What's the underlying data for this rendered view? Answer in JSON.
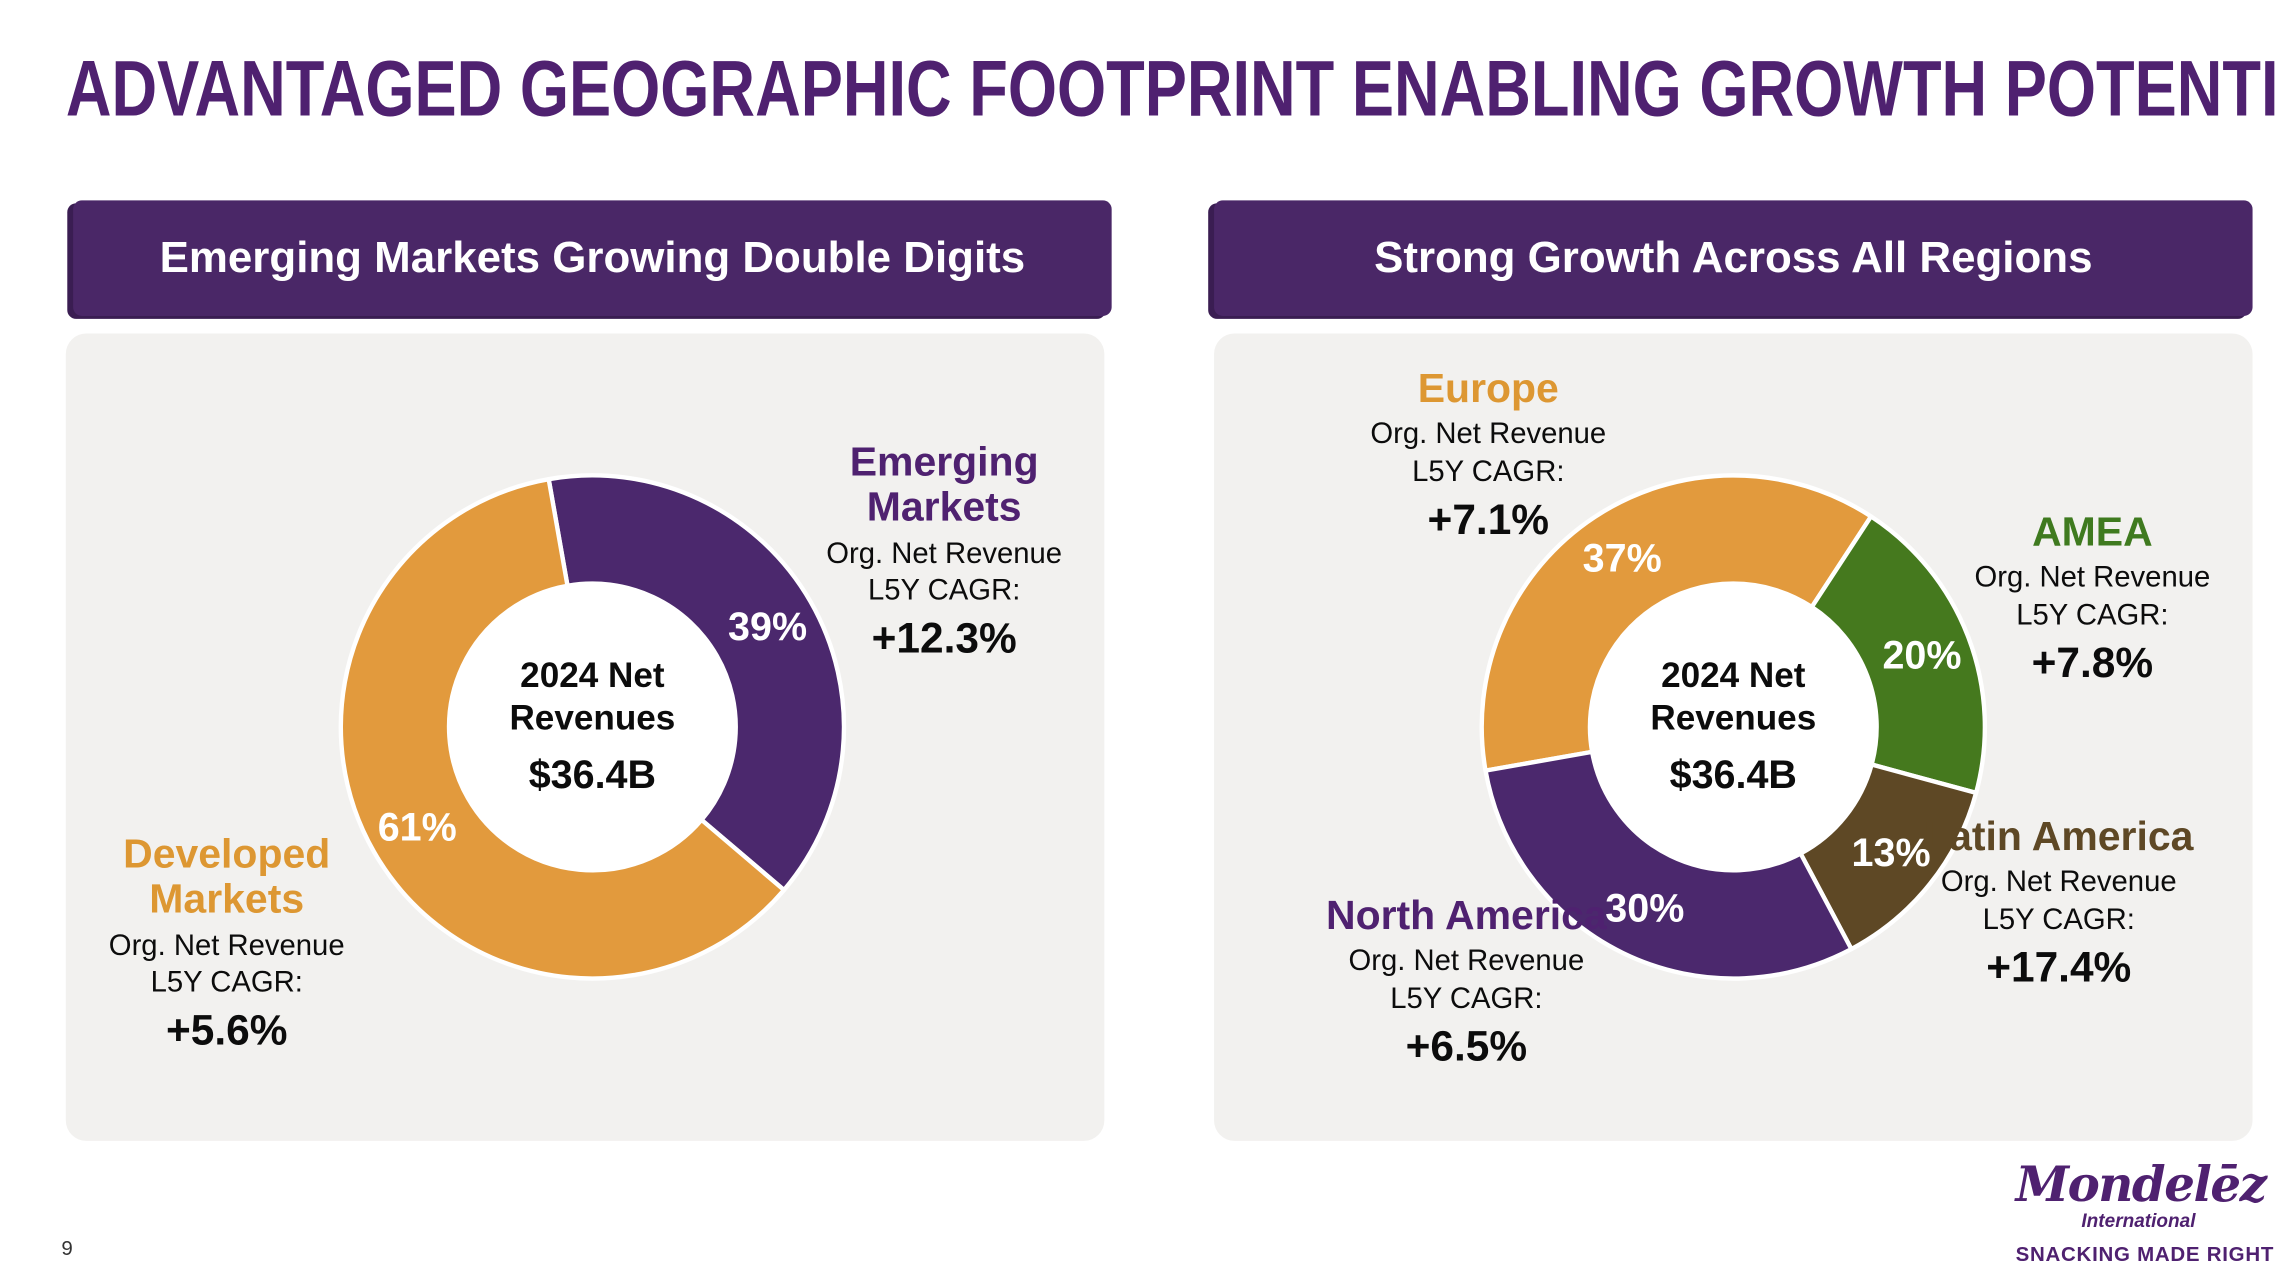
{
  "slide": {
    "title": "ADVANTAGED GEOGRAPHIC FOOTPRINT ENABLING GROWTH POTENTIAL",
    "page_number": "9"
  },
  "logo": {
    "brand": "Mondelēz",
    "sub": "International",
    "tagline": "SNACKING MADE RIGHT"
  },
  "colors": {
    "title_purple": "#4F2170",
    "header_bar_purple": "#4A2767",
    "panel_gray": "#F2F1EF",
    "donut_purple": "#4B286D",
    "donut_orange": "#E29A3D",
    "donut_green": "#45791E",
    "donut_brown": "#5E4825"
  },
  "chart_data": [
    {
      "type": "donut",
      "title": "Emerging Markets Growing Double Digits",
      "center_label": [
        "2024 Net",
        "Revenues",
        "$36.4B"
      ],
      "rotation_deg": -10,
      "segments": [
        {
          "label": "Emerging Markets",
          "value_pct": 39,
          "color": "#4B286D",
          "label_color": "#4F2170",
          "note_line1": "Org. Net Revenue",
          "note_line2": "L5Y CAGR:",
          "cagr": "+12.3%"
        },
        {
          "label": "Developed Markets",
          "value_pct": 61,
          "color": "#E29A3D",
          "label_color": "#DD9732",
          "note_line1": "Org. Net Revenue",
          "note_line2": "L5Y CAGR:",
          "cagr": "+5.6%"
        }
      ]
    },
    {
      "type": "donut",
      "title": "Strong Growth Across All Regions",
      "center_label": [
        "2024 Net",
        "Revenues",
        "$36.4B"
      ],
      "rotation_deg": -100,
      "segments": [
        {
          "label": "Europe",
          "value_pct": 37,
          "color": "#E29A3D",
          "label_color": "#DD9732",
          "note_line1": "Org. Net Revenue",
          "note_line2": "L5Y CAGR:",
          "cagr": "+7.1%"
        },
        {
          "label": "AMEA",
          "value_pct": 20,
          "color": "#45791E",
          "label_color": "#3F7A1F",
          "note_line1": "Org. Net Revenue",
          "note_line2": "L5Y CAGR:",
          "cagr": "+7.8%"
        },
        {
          "label": "Latin America",
          "value_pct": 13,
          "color": "#5E4825",
          "label_color": "#5E4825",
          "note_line1": "Org. Net Revenue",
          "note_line2": "L5Y CAGR:",
          "cagr": "+17.4%"
        },
        {
          "label": "North America",
          "value_pct": 30,
          "color": "#4B286D",
          "label_color": "#4F2170",
          "note_line1": "Org. Net Revenue",
          "note_line2": "L5Y CAGR:",
          "cagr": "+6.5%"
        }
      ]
    }
  ]
}
